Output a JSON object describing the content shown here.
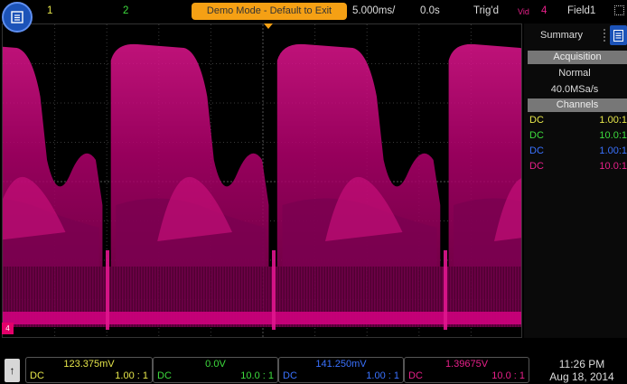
{
  "topbar": {
    "ch1": "1",
    "ch2": "2",
    "demo_label": "Demo Mode - Default to Exit",
    "timebase": "5.000ms/",
    "delay": "0.0s",
    "trig_status": "Trig'd",
    "trig_source_prefix": "Vid",
    "trig_source_ch": "4",
    "trig_field": "Field1"
  },
  "side_panel": {
    "tab_label": "Summary",
    "acq_header": "Acquisition",
    "acq_mode": "Normal",
    "sample_rate": "40.0MSa/s",
    "channels_header": "Channels",
    "channels": [
      {
        "coupling": "DC",
        "ratio": "1.00:1",
        "color": "#e6e64a"
      },
      {
        "coupling": "DC",
        "ratio": "10.0:1",
        "color": "#3ddc3d"
      },
      {
        "coupling": "DC",
        "ratio": "1.00:1",
        "color": "#3a72ff"
      },
      {
        "coupling": "DC",
        "ratio": "10.0:1",
        "color": "#e8208a"
      }
    ]
  },
  "bottom": {
    "channels": [
      {
        "value": "123.375mV",
        "coupling": "DC",
        "ratio": "1.00 : 1",
        "color": "#e6e64a"
      },
      {
        "value": "0.0V",
        "coupling": "DC",
        "ratio": "10.0 : 1",
        "color": "#3ddc3d"
      },
      {
        "value": "141.250mV",
        "coupling": "DC",
        "ratio": "1.00 : 1",
        "color": "#3a72ff"
      },
      {
        "value": "1.39675V",
        "coupling": "DC",
        "ratio": "10.0 : 1",
        "color": "#e8208a"
      }
    ],
    "time": "11:26 PM",
    "date": "Aug 18, 2014"
  },
  "marker": {
    "ch4": "4"
  },
  "colors": {
    "waveform": "#c8007a",
    "grid": "#3a3a3a",
    "accent": "#f5a014",
    "menu": "#1c53b8"
  }
}
